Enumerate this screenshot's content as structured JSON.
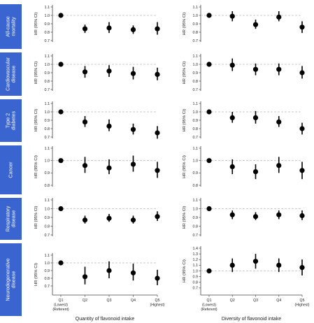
{
  "row_labels": [
    [
      "All-cause",
      "mortality"
    ],
    [
      "Cardiovascular",
      "disease"
    ],
    [
      "Type 2",
      "diabetes"
    ],
    [
      "Cancer"
    ],
    [
      "Respiratory",
      "disease"
    ],
    [
      "Neurodegenerative",
      "disease"
    ]
  ],
  "y_axis_label": "HR (95% CI)",
  "x_categories": [
    [
      "Q1",
      "(Lowest)",
      "(Referent)"
    ],
    [
      "Q2"
    ],
    [
      "Q3"
    ],
    [
      "Q4"
    ],
    [
      "Q5",
      "(Highest)"
    ]
  ],
  "colors": {
    "row_label_bg": "#3a64cf",
    "marker": "#000000",
    "reference_line": "#bbbbbb",
    "axis": "#444444"
  },
  "chart_data": [
    {
      "type": "scatter",
      "row": "All-cause mortality",
      "panel": "Quantity of flavonoid intake",
      "ylim": [
        0.7,
        1.1
      ],
      "yticks": [
        0.7,
        0.8,
        0.9,
        1.0,
        1.1
      ],
      "reference": 1.0,
      "categories": [
        "Q1",
        "Q2",
        "Q3",
        "Q4",
        "Q5"
      ],
      "values": [
        1.0,
        0.84,
        0.85,
        0.83,
        0.84
      ],
      "ci_low": [
        1.0,
        0.79,
        0.79,
        0.78,
        0.77
      ],
      "ci_high": [
        1.0,
        0.89,
        0.92,
        0.88,
        0.92
      ]
    },
    {
      "type": "scatter",
      "row": "All-cause mortality",
      "panel": "Diversity of flavonoid intake",
      "ylim": [
        0.7,
        1.1
      ],
      "yticks": [
        0.7,
        0.8,
        0.9,
        1.0,
        1.1
      ],
      "reference": 1.0,
      "categories": [
        "Q1",
        "Q2",
        "Q3",
        "Q4",
        "Q5"
      ],
      "values": [
        1.0,
        0.99,
        0.89,
        0.98,
        0.86
      ],
      "ci_low": [
        1.0,
        0.93,
        0.84,
        0.93,
        0.79
      ],
      "ci_high": [
        1.0,
        1.05,
        0.95,
        1.05,
        0.93
      ]
    },
    {
      "type": "scatter",
      "row": "Cardiovascular disease",
      "panel": "Quantity of flavonoid intake",
      "ylim": [
        0.7,
        1.1
      ],
      "yticks": [
        0.7,
        0.8,
        0.9,
        1.0,
        1.1
      ],
      "reference": 1.0,
      "categories": [
        "Q1",
        "Q2",
        "Q3",
        "Q4",
        "Q5"
      ],
      "values": [
        1.0,
        0.91,
        0.92,
        0.89,
        0.88
      ],
      "ci_low": [
        1.0,
        0.84,
        0.85,
        0.82,
        0.81
      ],
      "ci_high": [
        1.0,
        0.98,
        0.99,
        0.97,
        0.96
      ]
    },
    {
      "type": "scatter",
      "row": "Cardiovascular disease",
      "panel": "Diversity of flavonoid intake",
      "ylim": [
        0.7,
        1.1
      ],
      "yticks": [
        0.7,
        0.8,
        0.9,
        1.0,
        1.1
      ],
      "reference": 1.0,
      "categories": [
        "Q1",
        "Q2",
        "Q3",
        "Q4",
        "Q5"
      ],
      "values": [
        1.0,
        0.99,
        0.94,
        0.94,
        0.9
      ],
      "ci_low": [
        1.0,
        0.92,
        0.87,
        0.87,
        0.83
      ],
      "ci_high": [
        1.0,
        1.07,
        1.01,
        1.01,
        0.98
      ]
    },
    {
      "type": "scatter",
      "row": "Type 2 diabetes",
      "panel": "Quantity of flavonoid intake",
      "ylim": [
        0.7,
        1.1
      ],
      "yticks": [
        0.7,
        0.8,
        0.9,
        1.0,
        1.1
      ],
      "reference": 1.0,
      "categories": [
        "Q1",
        "Q2",
        "Q3",
        "Q4",
        "Q5"
      ],
      "values": [
        1.0,
        0.88,
        0.83,
        0.79,
        0.75
      ],
      "ci_low": [
        1.0,
        0.82,
        0.77,
        0.73,
        0.68
      ],
      "ci_high": [
        1.0,
        0.95,
        0.91,
        0.86,
        0.83
      ]
    },
    {
      "type": "scatter",
      "row": "Type 2 diabetes",
      "panel": "Diversity of flavonoid intake",
      "ylim": [
        0.7,
        1.1
      ],
      "yticks": [
        0.7,
        0.8,
        0.9,
        1.0,
        1.1
      ],
      "reference": 1.0,
      "categories": [
        "Q1",
        "Q2",
        "Q3",
        "Q4",
        "Q5"
      ],
      "values": [
        1.0,
        0.93,
        0.93,
        0.88,
        0.8
      ],
      "ci_low": [
        1.0,
        0.87,
        0.86,
        0.82,
        0.73
      ],
      "ci_high": [
        1.0,
        1.0,
        1.01,
        0.95,
        0.87
      ]
    },
    {
      "type": "scatter",
      "row": "Cancer",
      "panel": "Quantity of flavonoid intake",
      "ylim": [
        0.8,
        1.1
      ],
      "yticks": [
        0.8,
        0.9,
        1.0,
        1.1
      ],
      "reference": 1.0,
      "categories": [
        "Q1",
        "Q2",
        "Q3",
        "Q4",
        "Q5"
      ],
      "values": [
        1.0,
        0.96,
        0.94,
        0.97,
        0.92
      ],
      "ci_low": [
        1.0,
        0.9,
        0.89,
        0.91,
        0.86
      ],
      "ci_high": [
        1.0,
        1.03,
        1.01,
        1.04,
        0.99
      ]
    },
    {
      "type": "scatter",
      "row": "Cancer",
      "panel": "Diversity of flavonoid intake",
      "ylim": [
        0.8,
        1.1
      ],
      "yticks": [
        0.8,
        0.9,
        1.0,
        1.1
      ],
      "reference": 1.0,
      "categories": [
        "Q1",
        "Q2",
        "Q3",
        "Q4",
        "Q5"
      ],
      "values": [
        1.0,
        0.95,
        0.91,
        0.96,
        0.92
      ],
      "ci_low": [
        1.0,
        0.89,
        0.85,
        0.9,
        0.85
      ],
      "ci_high": [
        1.0,
        1.01,
        0.97,
        1.03,
        0.99
      ]
    },
    {
      "type": "scatter",
      "row": "Respiratory disease",
      "panel": "Quantity of flavonoid intake",
      "ylim": [
        0.7,
        1.1
      ],
      "yticks": [
        0.7,
        0.8,
        0.9,
        1.0,
        1.1
      ],
      "reference": 1.0,
      "categories": [
        "Q1",
        "Q2",
        "Q3",
        "Q4",
        "Q5"
      ],
      "values": [
        1.0,
        0.87,
        0.89,
        0.87,
        0.91
      ],
      "ci_low": [
        1.0,
        0.83,
        0.85,
        0.83,
        0.86
      ],
      "ci_high": [
        1.0,
        0.92,
        0.94,
        0.92,
        0.97
      ]
    },
    {
      "type": "scatter",
      "row": "Respiratory disease",
      "panel": "Diversity of flavonoid intake",
      "ylim": [
        0.7,
        1.1
      ],
      "yticks": [
        0.7,
        0.8,
        0.9,
        1.0,
        1.1
      ],
      "reference": 1.0,
      "categories": [
        "Q1",
        "Q2",
        "Q3",
        "Q4",
        "Q5"
      ],
      "values": [
        1.0,
        0.93,
        0.91,
        0.93,
        0.92
      ],
      "ci_low": [
        1.0,
        0.88,
        0.87,
        0.88,
        0.87
      ],
      "ci_high": [
        1.0,
        0.98,
        0.96,
        0.98,
        0.98
      ]
    },
    {
      "type": "scatter",
      "row": "Neurodegenerative disease",
      "panel": "Quantity of flavonoid intake",
      "ylim": [
        0.6,
        1.1
      ],
      "yticks": [
        0.7,
        0.8,
        0.9,
        1.0,
        1.1
      ],
      "reference": 1.0,
      "categories": [
        "Q1",
        "Q2",
        "Q3",
        "Q4",
        "Q5"
      ],
      "values": [
        1.0,
        0.82,
        0.9,
        0.87,
        0.8
      ],
      "ci_low": [
        1.0,
        0.72,
        0.8,
        0.77,
        0.71
      ],
      "ci_high": [
        1.0,
        0.95,
        1.02,
        0.99,
        0.91
      ]
    },
    {
      "type": "scatter",
      "row": "Neurodegenerative disease",
      "panel": "Diversity of flavonoid intake",
      "ylim": [
        0.6,
        1.4
      ],
      "yticks": [
        0.7,
        0.8,
        0.9,
        1.0,
        1.1,
        1.2,
        1.3,
        1.4
      ],
      "reference": 1.0,
      "categories": [
        "Q1",
        "Q2",
        "Q3",
        "Q4",
        "Q5"
      ],
      "values": [
        1.0,
        1.1,
        1.17,
        1.1,
        1.06
      ],
      "ci_low": [
        1.0,
        0.98,
        1.04,
        0.98,
        0.92
      ],
      "ci_high": [
        1.0,
        1.22,
        1.3,
        1.22,
        1.2
      ]
    }
  ],
  "x_titles": [
    "Quantity of flavonoid intake",
    "Diversity of flavonoid intake"
  ]
}
